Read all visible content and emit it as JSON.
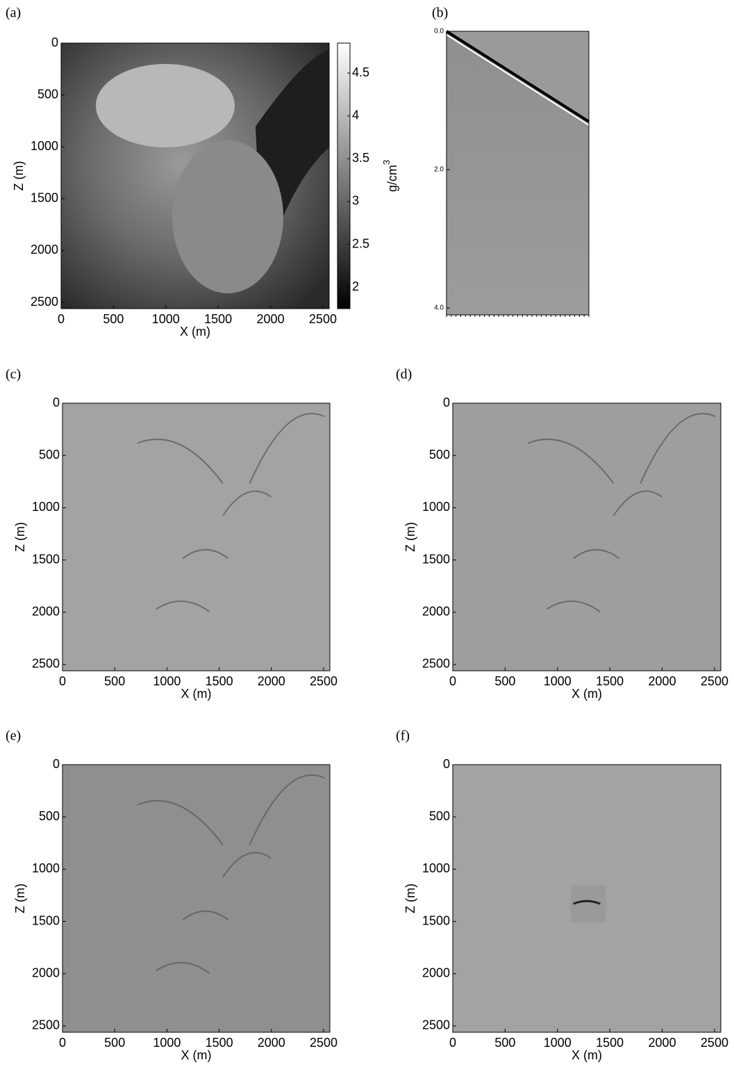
{
  "panels": [
    {
      "label": "(a)",
      "x_label": "X (m)",
      "y_label": "Z (m)",
      "xlim": [
        0,
        2560
      ],
      "ylim": [
        0,
        2560
      ],
      "xticks": [
        0,
        500,
        1000,
        1500,
        2000,
        2500
      ],
      "yticks": [
        0,
        500,
        1000,
        1500,
        2000,
        2500
      ],
      "colorbar": {
        "label": "g/cm",
        "label_superscript": "3",
        "lim": [
          1.75,
          4.85
        ],
        "ticks": [
          2,
          2.5,
          3,
          3.5,
          4,
          4.5
        ]
      }
    },
    {
      "label": "(b)",
      "ylim": [
        0,
        4.1
      ],
      "yticks": [
        {
          "value": 0,
          "label": "0.0"
        },
        {
          "value": 2,
          "label": "2.0"
        },
        {
          "value": 4,
          "label": "4.0"
        }
      ]
    },
    {
      "label": "(c)",
      "x_label": "X (m)",
      "y_label": "Z (m)",
      "xlim": [
        0,
        2560
      ],
      "ylim": [
        0,
        2560
      ],
      "xticks": [
        0,
        500,
        1000,
        1500,
        2000,
        2500
      ],
      "yticks": [
        0,
        500,
        1000,
        1500,
        2000,
        2500
      ]
    },
    {
      "label": "(d)",
      "x_label": "X (m)",
      "y_label": "Z (m)",
      "xlim": [
        0,
        2560
      ],
      "ylim": [
        0,
        2560
      ],
      "xticks": [
        0,
        500,
        1000,
        1500,
        2000,
        2500
      ],
      "yticks": [
        0,
        500,
        1000,
        1500,
        2000,
        2500
      ]
    },
    {
      "label": "(e)",
      "x_label": "X (m)",
      "y_label": "Z (m)",
      "xlim": [
        0,
        2560
      ],
      "ylim": [
        0,
        2560
      ],
      "xticks": [
        0,
        500,
        1000,
        1500,
        2000,
        2500
      ],
      "yticks": [
        0,
        500,
        1000,
        1500,
        2000,
        2500
      ]
    },
    {
      "label": "(f)",
      "x_label": "X (m)",
      "y_label": "Z (m)",
      "xlim": [
        0,
        2560
      ],
      "ylim": [
        0,
        2560
      ],
      "xticks": [
        0,
        500,
        1000,
        1500,
        2000,
        2500
      ],
      "yticks": [
        0,
        500,
        1000,
        1500,
        2000,
        2500
      ]
    }
  ]
}
